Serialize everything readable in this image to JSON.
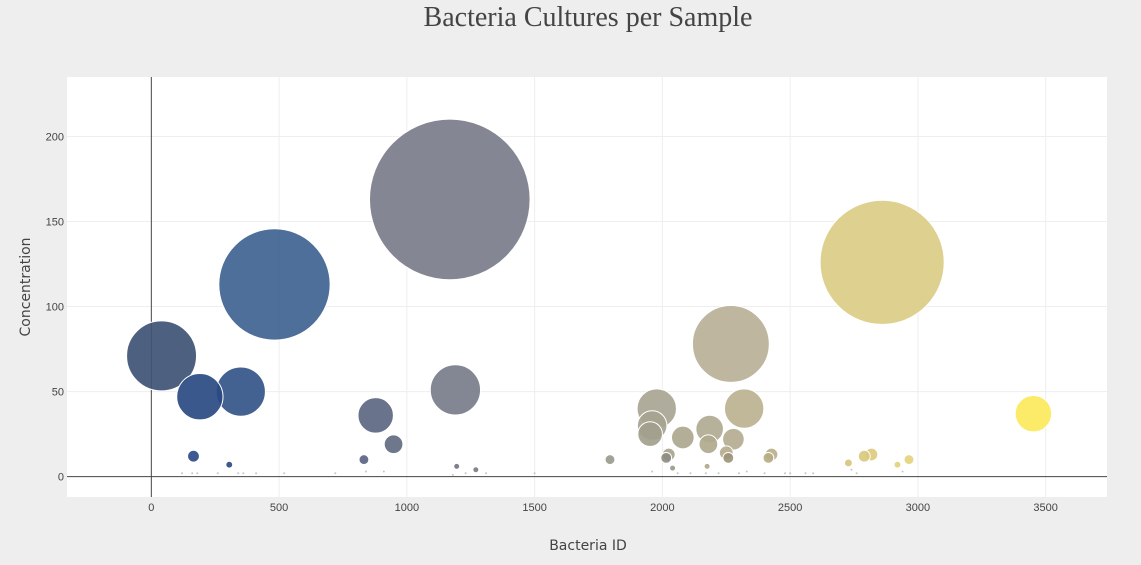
{
  "chart_data": {
    "type": "scatter",
    "title": "Bacteria Cultures per Sample",
    "xlabel": "Bacteria ID",
    "ylabel": "Concentration",
    "xlim": [
      -330,
      3740
    ],
    "ylim": [
      -12,
      235
    ],
    "x_ticks": [
      "0",
      "500",
      "1000",
      "1500",
      "2000",
      "2500",
      "3000",
      "3500"
    ],
    "y_ticks": [
      "0",
      "50",
      "100",
      "150",
      "200"
    ],
    "x_tick_values": [
      0,
      500,
      1000,
      1500,
      2000,
      2500,
      3000,
      3500
    ],
    "y_tick_values": [
      0,
      50,
      100,
      150,
      200
    ],
    "grid": true,
    "marker_size": "proportional to concentration",
    "colorscale": "Cividis",
    "points": [
      {
        "x": 40,
        "y": 71,
        "color": "#3f5375"
      },
      {
        "x": 165,
        "y": 12,
        "color": "#2c4b86"
      },
      {
        "x": 190,
        "y": 47,
        "color": "#2a4a83"
      },
      {
        "x": 305,
        "y": 7,
        "color": "#2e4c82"
      },
      {
        "x": 350,
        "y": 50,
        "color": "#335488"
      },
      {
        "x": 482,
        "y": 113,
        "color": "#3e6390"
      },
      {
        "x": 832,
        "y": 10,
        "color": "#5a6584"
      },
      {
        "x": 878,
        "y": 36,
        "color": "#5d6782"
      },
      {
        "x": 948,
        "y": 19,
        "color": "#636b80"
      },
      {
        "x": 1168,
        "y": 163,
        "color": "#797c8b"
      },
      {
        "x": 1195,
        "y": 6,
        "color": "#73767f"
      },
      {
        "x": 1190,
        "y": 51,
        "color": "#787c8a"
      },
      {
        "x": 1270,
        "y": 4,
        "color": "#7a7d85"
      },
      {
        "x": 1795,
        "y": 10,
        "color": "#9b9a8e"
      },
      {
        "x": 1978,
        "y": 40,
        "color": "#a9a593"
      },
      {
        "x": 1960,
        "y": 30,
        "color": "#a7a391"
      },
      {
        "x": 1952,
        "y": 25,
        "color": "#a29f8c"
      },
      {
        "x": 2015,
        "y": 11,
        "color": "#8e8c82"
      },
      {
        "x": 2025,
        "y": 13,
        "color": "#a8a48e"
      },
      {
        "x": 2040,
        "y": 5,
        "color": "#9b998b"
      },
      {
        "x": 2080,
        "y": 23,
        "color": "#ada78f"
      },
      {
        "x": 2185,
        "y": 28,
        "color": "#b0aa91"
      },
      {
        "x": 2180,
        "y": 19,
        "color": "#b0a98e"
      },
      {
        "x": 2175,
        "y": 6,
        "color": "#b2a88a"
      },
      {
        "x": 2250,
        "y": 14,
        "color": "#b6ad8e"
      },
      {
        "x": 2258,
        "y": 11,
        "color": "#9c9478"
      },
      {
        "x": 2268,
        "y": 78,
        "color": "#b8b096"
      },
      {
        "x": 2278,
        "y": 22,
        "color": "#b4ac90"
      },
      {
        "x": 2320,
        "y": 40,
        "color": "#bbb290"
      },
      {
        "x": 2415,
        "y": 11,
        "color": "#b6ac86"
      },
      {
        "x": 2427,
        "y": 13,
        "color": "#bcb08a"
      },
      {
        "x": 2728,
        "y": 8,
        "color": "#d6c67c"
      },
      {
        "x": 2790,
        "y": 12,
        "color": "#d9c97e"
      },
      {
        "x": 2818,
        "y": 13,
        "color": "#dccb7f"
      },
      {
        "x": 2860,
        "y": 126,
        "color": "#dbcc84"
      },
      {
        "x": 2920,
        "y": 7,
        "color": "#e2d27a"
      },
      {
        "x": 2965,
        "y": 10,
        "color": "#e4d37c"
      },
      {
        "x": 3452,
        "y": 37,
        "color": "#fce85c"
      }
    ],
    "small_points": [
      {
        "x": 120,
        "y": 2
      },
      {
        "x": 160,
        "y": 2
      },
      {
        "x": 180,
        "y": 2
      },
      {
        "x": 260,
        "y": 2
      },
      {
        "x": 340,
        "y": 2
      },
      {
        "x": 360,
        "y": 2
      },
      {
        "x": 410,
        "y": 2
      },
      {
        "x": 520,
        "y": 2
      },
      {
        "x": 720,
        "y": 2
      },
      {
        "x": 840,
        "y": 3
      },
      {
        "x": 910,
        "y": 3
      },
      {
        "x": 1180,
        "y": 1
      },
      {
        "x": 1230,
        "y": 2
      },
      {
        "x": 1310,
        "y": 2
      },
      {
        "x": 1500,
        "y": 2
      },
      {
        "x": 1960,
        "y": 3
      },
      {
        "x": 2060,
        "y": 2
      },
      {
        "x": 2110,
        "y": 2
      },
      {
        "x": 2170,
        "y": 2
      },
      {
        "x": 2220,
        "y": 2
      },
      {
        "x": 2300,
        "y": 2
      },
      {
        "x": 2330,
        "y": 3
      },
      {
        "x": 2400,
        "y": 2
      },
      {
        "x": 2480,
        "y": 2
      },
      {
        "x": 2500,
        "y": 2
      },
      {
        "x": 2560,
        "y": 2
      },
      {
        "x": 2590,
        "y": 2
      },
      {
        "x": 2740,
        "y": 4
      },
      {
        "x": 2760,
        "y": 2
      },
      {
        "x": 2940,
        "y": 3
      }
    ]
  }
}
